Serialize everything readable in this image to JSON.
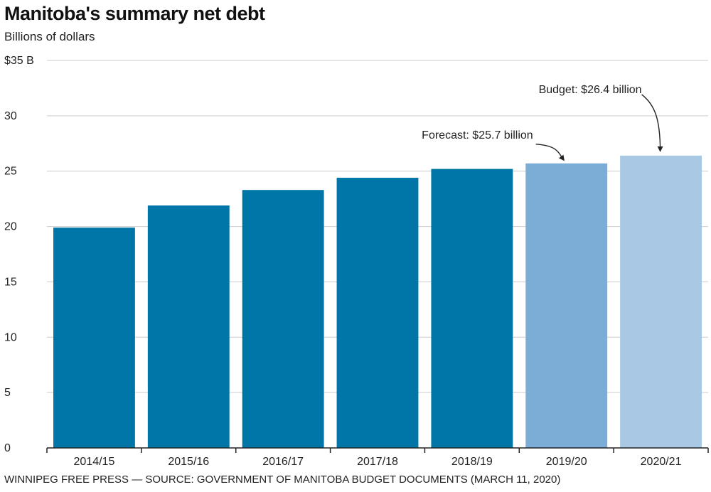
{
  "header": {
    "title": "Manitoba's summary net debt",
    "subtitle": "Billions of dollars"
  },
  "footer": {
    "source": "WINNIPEG FREE PRESS — SOURCE: GOVERNMENT OF MANITOBA BUDGET DOCUMENTS (MARCH 11, 2020)"
  },
  "colors": {
    "actual": "#0076a8",
    "forecast": "#7badd7",
    "budget": "#a8c8e4",
    "grid": "#cccccc",
    "axis": "#222222"
  },
  "chart_data": {
    "type": "bar",
    "title": "Manitoba's summary net debt",
    "ylabel": "Billions of dollars",
    "xlabel": "",
    "categories": [
      "2014/15",
      "2015/16",
      "2016/17",
      "2017/18",
      "2018/19",
      "2019/20",
      "2020/21"
    ],
    "values": [
      19.9,
      21.9,
      23.3,
      24.4,
      25.2,
      25.7,
      26.4
    ],
    "bar_kinds": [
      "actual",
      "actual",
      "actual",
      "actual",
      "actual",
      "forecast",
      "budget"
    ],
    "ylim": [
      0,
      35
    ],
    "yticks": [
      0,
      5,
      10,
      15,
      20,
      25,
      30,
      35
    ],
    "ytick_labels": [
      "0",
      "5",
      "10",
      "15",
      "20",
      "25",
      "30",
      "$35 B"
    ],
    "grid": true,
    "annotations": [
      {
        "text": "Forecast: $25.7 billion",
        "category": "2019/20"
      },
      {
        "text": "Budget: $26.4 billion",
        "category": "2020/21"
      }
    ]
  }
}
